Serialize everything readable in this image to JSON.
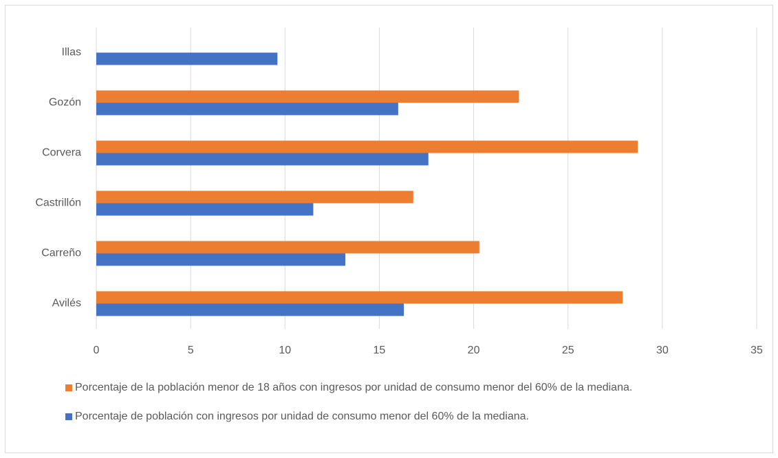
{
  "chart_data": {
    "type": "barh",
    "categories": [
      "Avilés",
      "Carreño",
      "Castrillón",
      "Corvera",
      "Gozón",
      "Illas"
    ],
    "series": [
      {
        "name": "Porcentaje de la población menor de 18 años con ingresos por unidad de consumo menor del 60% de la mediana.",
        "color": "#ed7d31",
        "values": [
          27.9,
          20.3,
          16.8,
          28.7,
          22.4,
          null
        ]
      },
      {
        "name": "Porcentaje de población con ingresos por unidad de consumo menor del 60% de la mediana.",
        "color": "#4472c4",
        "values": [
          16.3,
          13.2,
          11.5,
          17.6,
          16.0,
          9.6
        ]
      }
    ],
    "xlim": [
      0,
      35
    ],
    "xticks": [
      0,
      5,
      10,
      15,
      20,
      25,
      30,
      35
    ],
    "grid": true,
    "legend": "bottom"
  }
}
